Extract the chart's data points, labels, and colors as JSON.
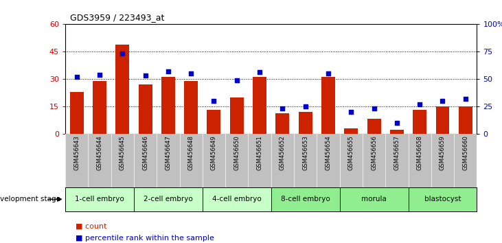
{
  "title": "GDS3959 / 223493_at",
  "samples": [
    "GSM456643",
    "GSM456644",
    "GSM456645",
    "GSM456646",
    "GSM456647",
    "GSM456648",
    "GSM456649",
    "GSM456650",
    "GSM456651",
    "GSM456652",
    "GSM456653",
    "GSM456654",
    "GSM456655",
    "GSM456656",
    "GSM456657",
    "GSM456658",
    "GSM456659",
    "GSM456660"
  ],
  "counts": [
    23,
    29,
    49,
    27,
    31,
    29,
    13,
    20,
    31,
    11,
    12,
    31,
    3,
    8,
    2,
    13,
    15,
    15
  ],
  "percentile_ranks": [
    52,
    54,
    73,
    53,
    57,
    55,
    30,
    49,
    56,
    23,
    25,
    55,
    20,
    23,
    10,
    27,
    30,
    32
  ],
  "stages": [
    {
      "label": "1-cell embryo",
      "start": 0,
      "end": 2
    },
    {
      "label": "2-cell embryo",
      "start": 3,
      "end": 5
    },
    {
      "label": "4-cell embryo",
      "start": 6,
      "end": 8
    },
    {
      "label": "8-cell embryo",
      "start": 9,
      "end": 11
    },
    {
      "label": "morula",
      "start": 12,
      "end": 14
    },
    {
      "label": "blastocyst",
      "start": 15,
      "end": 17
    }
  ],
  "stage_colors": [
    "#c8ffc8",
    "#c8ffc8",
    "#c8ffc8",
    "#90ee90",
    "#90ee90",
    "#90ee90"
  ],
  "ylim_left": [
    0,
    60
  ],
  "ylim_right": [
    0,
    100
  ],
  "yticks_left": [
    0,
    15,
    30,
    45,
    60
  ],
  "yticks_right": [
    0,
    25,
    50,
    75,
    100
  ],
  "bar_color": "#cc2200",
  "dot_color": "#0000cc",
  "ylabel_left_color": "#cc0000",
  "ylabel_right_color": "#0000cc",
  "xtick_bg_color": "#c0c0c0",
  "plot_bg_color": "#ffffff"
}
